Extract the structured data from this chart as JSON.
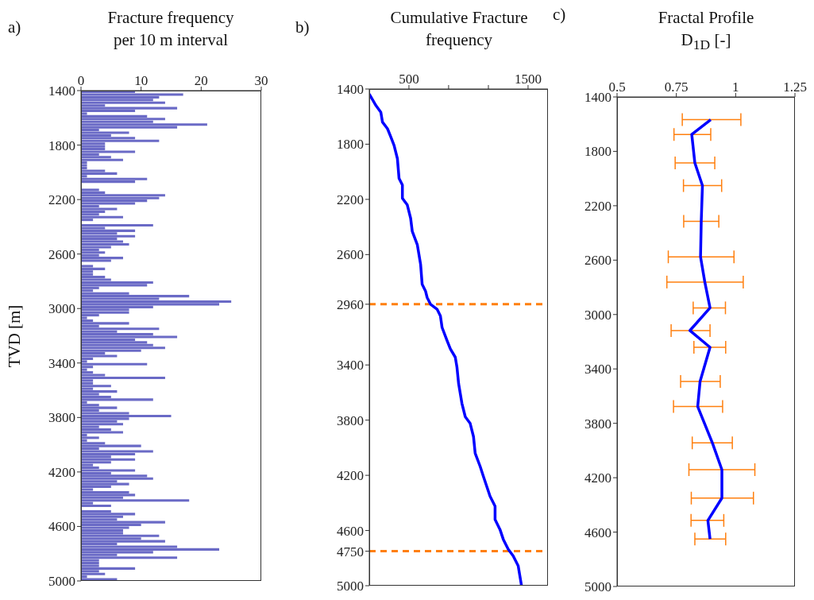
{
  "chart_data": [
    {
      "type": "histogram",
      "orientation": "horizontal",
      "title": "Fracture frequency\nper 10 m interval",
      "ylabel": "TVD [m]",
      "annotations": [
        "a)"
      ],
      "color": "#6a6ac6",
      "bins": [
        1400,
        1420,
        1440,
        1460,
        1480,
        1500,
        1520,
        1540,
        1560,
        1580,
        1600,
        1620,
        1640,
        1660,
        1680,
        1700,
        1720,
        1740,
        1760,
        1780,
        1800,
        1820,
        1840,
        1860,
        1880,
        1900,
        1920,
        1940,
        1960,
        1980,
        2000,
        2020,
        2040,
        2060,
        2080,
        2100,
        2120,
        2140,
        2160,
        2180,
        2200,
        2220,
        2240,
        2260,
        2280,
        2300,
        2320,
        2340,
        2360,
        2380,
        2400,
        2420,
        2440,
        2460,
        2480,
        2500,
        2520,
        2540,
        2560,
        2580,
        2600,
        2620,
        2640,
        2660,
        2680,
        2700,
        2720,
        2740,
        2760,
        2780,
        2800,
        2820,
        2840,
        2860,
        2880,
        2900,
        2920,
        2940,
        2960,
        2980,
        3000,
        3020,
        3040,
        3060,
        3080,
        3100,
        3120,
        3140,
        3160,
        3180,
        3200,
        3220,
        3240,
        3260,
        3280,
        3300,
        3320,
        3340,
        3360,
        3380,
        3400,
        3420,
        3440,
        3460,
        3480,
        3500,
        3520,
        3540,
        3560,
        3580,
        3600,
        3620,
        3640,
        3660,
        3680,
        3700,
        3720,
        3740,
        3760,
        3780,
        3800,
        3820,
        3840,
        3860,
        3880,
        3900,
        3920,
        3940,
        3960,
        3980,
        4000,
        4020,
        4040,
        4060,
        4080,
        4100,
        4120,
        4140,
        4160,
        4180,
        4200,
        4220,
        4240,
        4260,
        4280,
        4300,
        4320,
        4340,
        4360,
        4380,
        4400,
        4420,
        4440,
        4460,
        4480,
        4500,
        4520,
        4540,
        4560,
        4580,
        4600,
        4620,
        4640,
        4660,
        4680,
        4700,
        4720,
        4740,
        4760,
        4780,
        4800,
        4820,
        4840,
        4860,
        4880,
        4900,
        4920,
        4940,
        4960,
        4980,
        5000
      ],
      "values": [
        9,
        17,
        13,
        12,
        14,
        4,
        16,
        9,
        1,
        11,
        14,
        12,
        21,
        16,
        3,
        8,
        5,
        9,
        13,
        4,
        4,
        4,
        9,
        3,
        5,
        7,
        1,
        1,
        1,
        4,
        6,
        1,
        11,
        9,
        0,
        0,
        3,
        4,
        14,
        13,
        11,
        9,
        3,
        6,
        4,
        3,
        7,
        2,
        0,
        12,
        4,
        9,
        6,
        9,
        6,
        7,
        8,
        5,
        3,
        4,
        3,
        7,
        5,
        0,
        2,
        4,
        2,
        2,
        4,
        5,
        12,
        11,
        3,
        2,
        8,
        18,
        13,
        25,
        23,
        12,
        8,
        8,
        3,
        1,
        2,
        8,
        3,
        13,
        6,
        12,
        16,
        9,
        11,
        12,
        14,
        10,
        4,
        6,
        2,
        1,
        11,
        2,
        1,
        2,
        4,
        14,
        2,
        2,
        5,
        2,
        6,
        3,
        5,
        12,
        1,
        3,
        6,
        3,
        8,
        15,
        8,
        6,
        7,
        3,
        5,
        7,
        1,
        3,
        1,
        4,
        10,
        3,
        12,
        9,
        5,
        9,
        5,
        2,
        3,
        9,
        5,
        11,
        12,
        6,
        8,
        5,
        2,
        8,
        9,
        7,
        18,
        2,
        5,
        0,
        5,
        9,
        7,
        6,
        14,
        10,
        8,
        7,
        7,
        13,
        10,
        14,
        6,
        16,
        23,
        12,
        6,
        16,
        3,
        3,
        3,
        9,
        3,
        4,
        1,
        6
      ],
      "xlim": [
        0,
        30
      ],
      "xticks": [
        0,
        10,
        20,
        30
      ],
      "ylim": [
        5000,
        1400
      ],
      "yticks": [
        1400,
        1800,
        2200,
        2600,
        3000,
        3400,
        3800,
        4200,
        4600,
        5000
      ]
    },
    {
      "type": "line",
      "title": "Cumulative Fracture\nfrequency",
      "annotations": [
        "b)"
      ],
      "marker": "none",
      "series": [
        {
          "color": "#0000ff",
          "x": [
            167,
            223,
            264,
            278,
            320,
            348,
            375,
            403,
            417,
            445,
            445,
            486,
            514,
            528,
            570,
            598,
            611,
            639,
            653,
            681,
            736,
            764,
            778,
            820,
            848,
            889,
            903,
            917,
            945,
            973,
            1014,
            1042,
            1056,
            1098,
            1125,
            1153,
            1181,
            1223,
            1223,
            1264,
            1292,
            1334,
            1375,
            1417,
            1431,
            1445
          ],
          "values": [
            1436,
            1520,
            1568,
            1640,
            1688,
            1748,
            1808,
            1904,
            2048,
            2096,
            2192,
            2240,
            2336,
            2432,
            2528,
            2672,
            2816,
            2864,
            2912,
            2960,
            2996,
            3044,
            3128,
            3224,
            3284,
            3344,
            3416,
            3536,
            3680,
            3776,
            3824,
            3920,
            4040,
            4136,
            4208,
            4280,
            4352,
            4424,
            4520,
            4592,
            4664,
            4736,
            4784,
            4856,
            4928,
            5000
          ]
        }
      ],
      "xlim": [
        167,
        1667
      ],
      "xticks": [
        500,
        {
          "value": 833,
          "label": null
        },
        {
          "value": 1167,
          "label": null
        },
        1500
      ],
      "ylim": [
        5000,
        1400
      ],
      "yticks": [
        1400,
        1800,
        2200,
        2600,
        2960,
        3400,
        3800,
        4200,
        4600,
        4750,
        5000
      ],
      "ref_lines": [
        {
          "axis": "y",
          "value": 2960,
          "color": "#ff7f0e",
          "line_style": "dashed"
        },
        {
          "axis": "y",
          "value": 4750,
          "color": "#ff7f0e",
          "line_style": "dashed"
        }
      ]
    },
    {
      "type": "line",
      "title": "Fractal Profile\nD$_{1D}$ [-]",
      "annotations": [
        "c)"
      ],
      "marker": "none",
      "series": [
        {
          "color": "#0000ff",
          "x": [
            0.895,
            0.815,
            0.828,
            0.86,
            0.855,
            0.852,
            0.87,
            0.892,
            0.807,
            0.892,
            0.85,
            0.84,
            0.902,
            0.942,
            0.942,
            0.883,
            0.892
          ],
          "values": [
            1567,
            1676,
            1885,
            2052,
            2314,
            2576,
            2761,
            2951,
            3118,
            3241,
            3492,
            3677,
            3944,
            4141,
            4350,
            4514,
            4651
          ],
          "xerrors": [
            [
              0.775,
              1.022
            ],
            [
              0.74,
              0.895
            ],
            [
              0.745,
              0.912
            ],
            [
              0.78,
              0.941
            ],
            [
              0.781,
              0.929
            ],
            [
              0.716,
              0.993
            ],
            [
              0.71,
              1.032
            ],
            [
              0.821,
              0.957
            ],
            [
              0.728,
              0.892
            ],
            [
              0.824,
              0.958
            ],
            [
              0.768,
              0.935
            ],
            [
              0.738,
              0.945
            ],
            [
              0.817,
              0.986
            ],
            [
              0.803,
              1.081
            ],
            [
              0.813,
              1.075
            ],
            [
              0.812,
              0.95
            ],
            [
              0.828,
              0.958
            ]
          ]
        }
      ],
      "xlim": [
        0.5,
        1.25
      ],
      "xticks": [
        0.5,
        0.75,
        1,
        1.25
      ],
      "ylim": [
        5000,
        1400
      ],
      "yticks": [
        1400,
        1800,
        2200,
        2600,
        3000,
        3400,
        3800,
        4200,
        4600,
        5000
      ]
    }
  ]
}
